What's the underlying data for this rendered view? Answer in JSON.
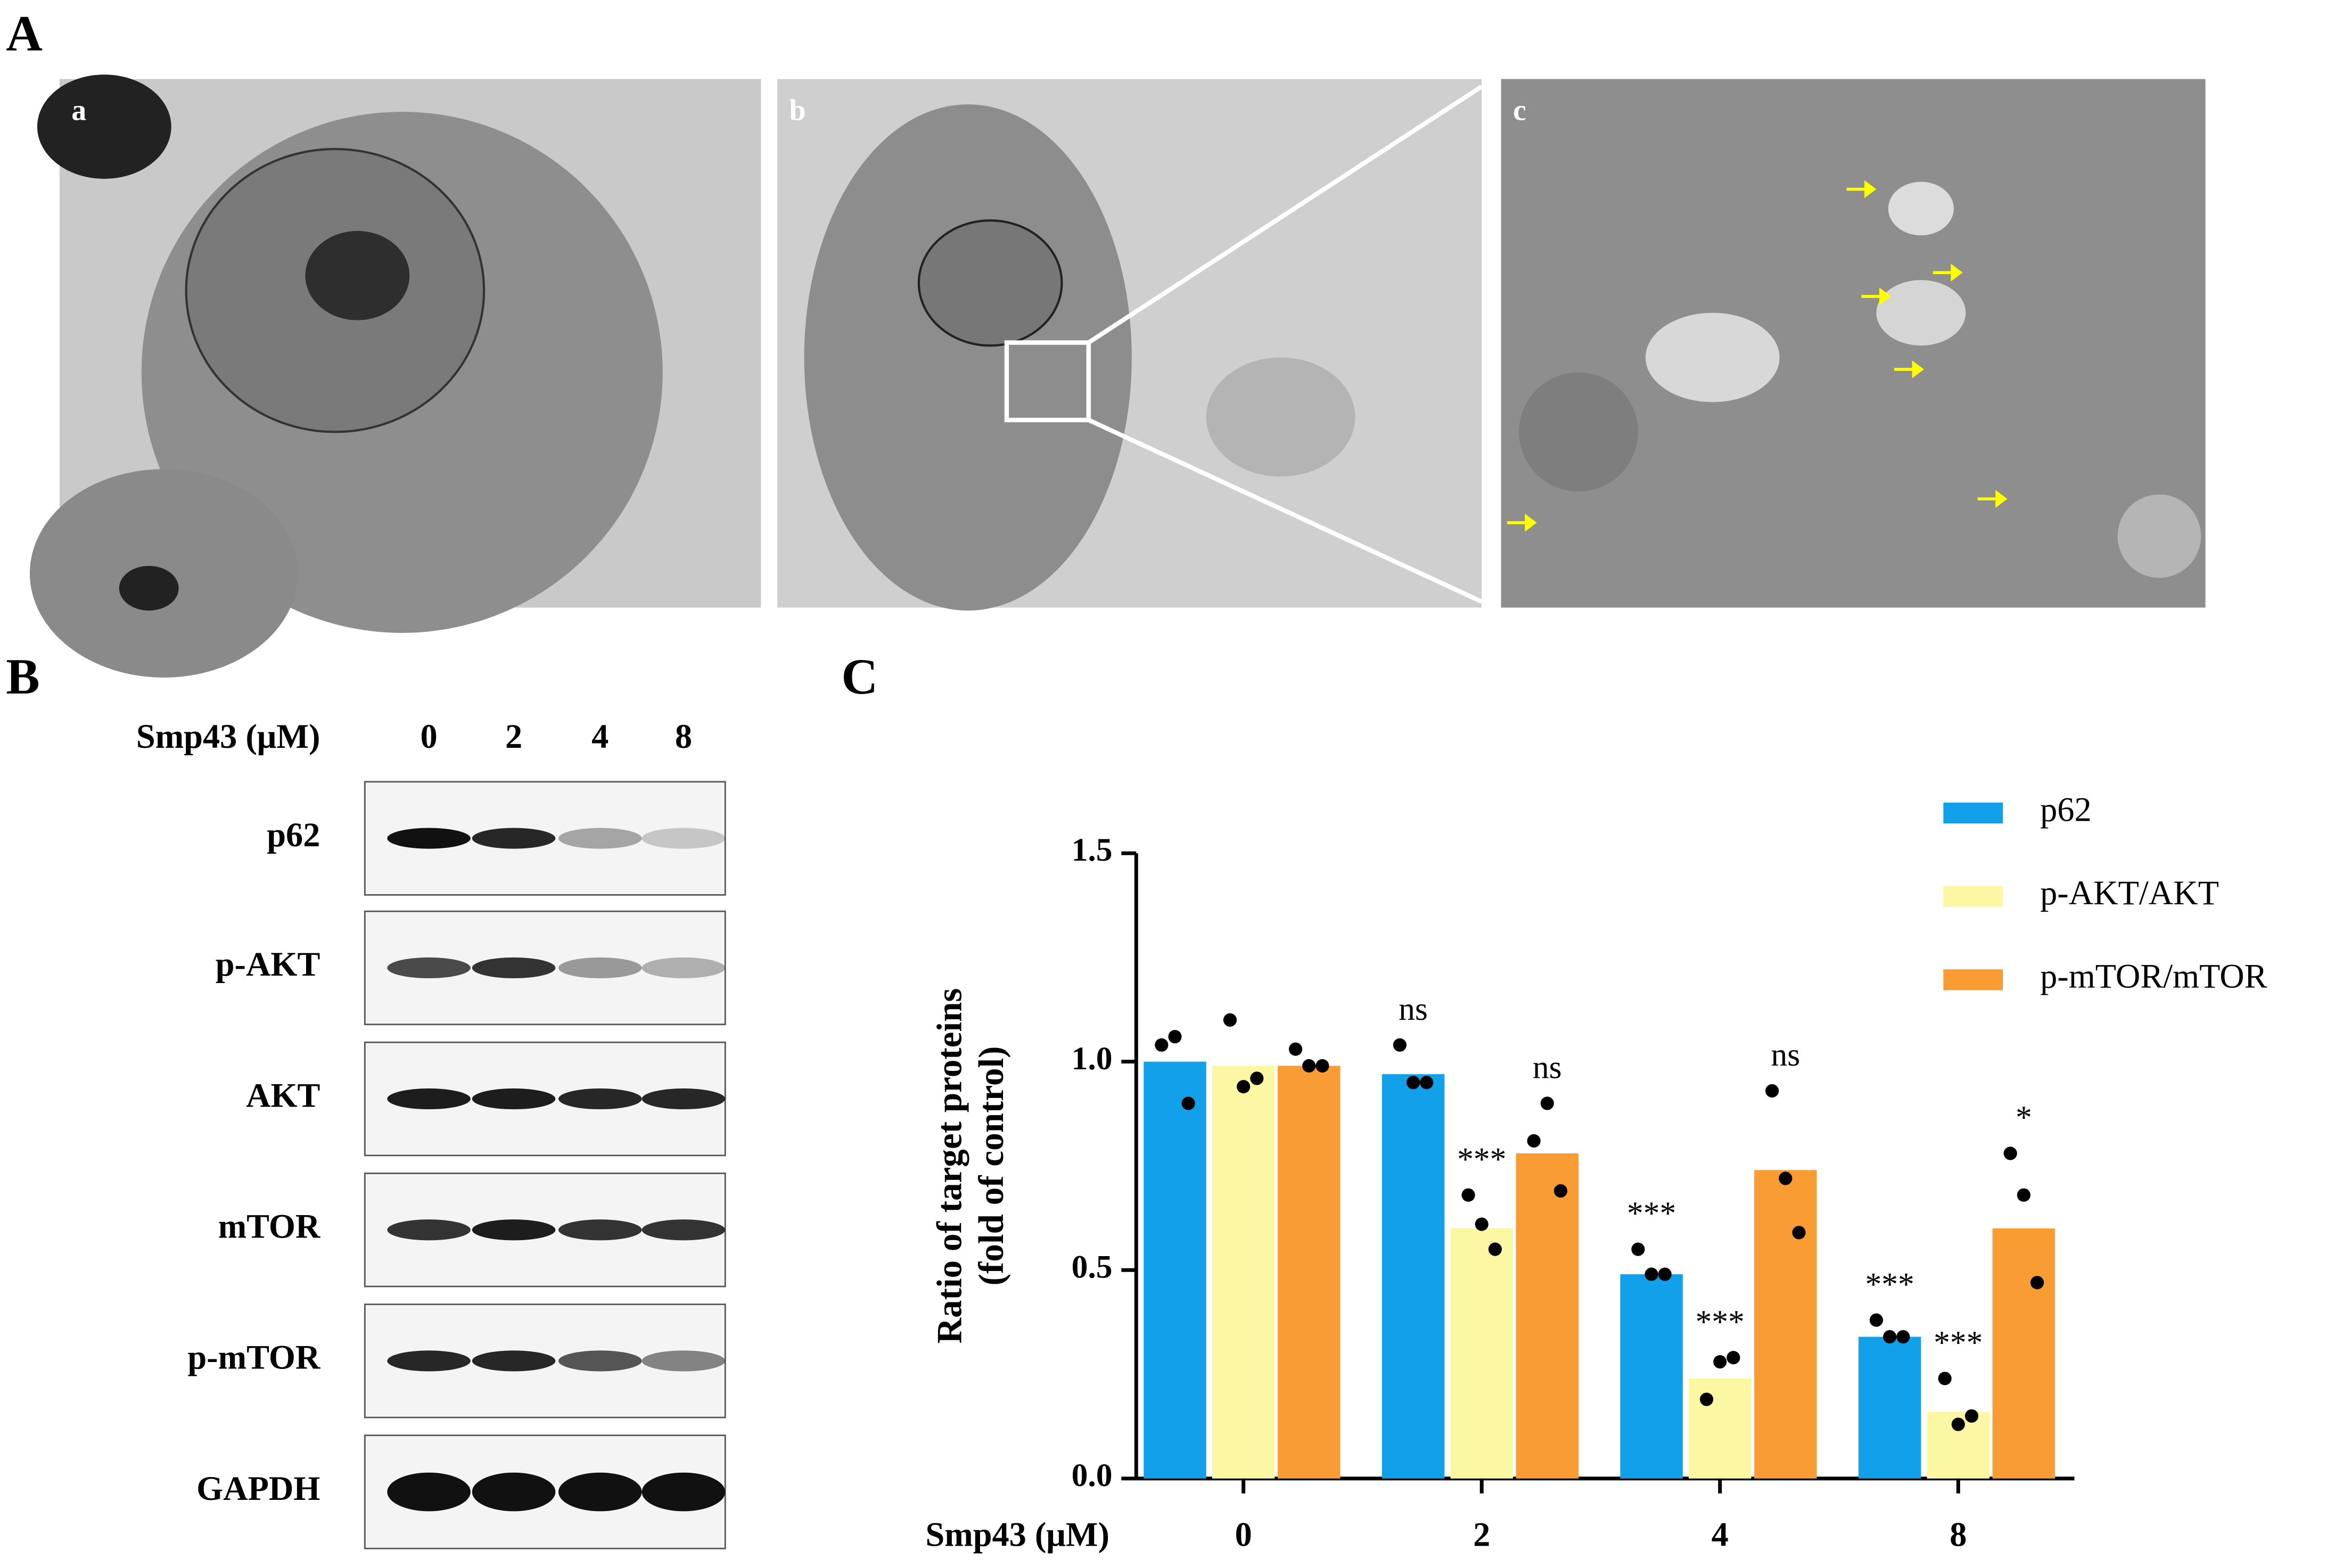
{
  "figure": {
    "panel_a": "A",
    "panel_b": "B",
    "panel_c": "C",
    "image_labels": [
      "a",
      "b",
      "c"
    ]
  },
  "blot": {
    "treatment_label": "Smp43 (μM)",
    "lanes": [
      "0",
      "2",
      "4",
      "8"
    ],
    "proteins": [
      "p62",
      "p-AKT",
      "AKT",
      "mTOR",
      "p-mTOR",
      "GAPDH"
    ]
  },
  "chart_data": {
    "type": "bar",
    "y_label": [
      "Ratio of target proteins",
      "(fold of control)"
    ],
    "x_label": "Smp43 (μM)",
    "categories": [
      "0",
      "2",
      "4",
      "8"
    ],
    "series": [
      {
        "name": "p62",
        "color": "#12a0ea",
        "values": [
          1.0,
          0.97,
          0.49,
          0.34
        ],
        "points": [
          [
            1.04,
            1.06,
            0.9
          ],
          [
            1.04,
            0.95,
            0.95
          ],
          [
            0.55,
            0.49,
            0.49
          ],
          [
            0.38,
            0.34,
            0.34
          ]
        ],
        "annotations": [
          null,
          "ns",
          "***",
          "***"
        ]
      },
      {
        "name": "p-AKT/AKT",
        "color": "#fbf7a2",
        "values": [
          0.99,
          0.6,
          0.24,
          0.16
        ],
        "points": [
          [
            1.1,
            0.94,
            0.96
          ],
          [
            0.68,
            0.61,
            0.55
          ],
          [
            0.19,
            0.28,
            0.29
          ],
          [
            0.24,
            0.13,
            0.15
          ]
        ],
        "annotations": [
          null,
          "***",
          "***",
          "***"
        ]
      },
      {
        "name": "p-mTOR/mTOR",
        "color": "#f99c34",
        "values": [
          0.99,
          0.78,
          0.74,
          0.6
        ],
        "points": [
          [
            1.03,
            0.99,
            0.99
          ],
          [
            0.81,
            0.9,
            0.69
          ],
          [
            0.93,
            0.72,
            0.59
          ],
          [
            0.78,
            0.68,
            0.47
          ]
        ],
        "annotations": [
          null,
          "ns",
          "ns",
          "*"
        ]
      }
    ],
    "ylim": [
      0,
      1.5
    ],
    "yticks": [
      {
        "value": 0,
        "label": "0.0"
      },
      {
        "value": 0.5,
        "label": "0.5"
      },
      {
        "value": 1,
        "label": "1.0"
      },
      {
        "value": 1.5,
        "label": "1.5"
      }
    ],
    "legend": "upper right"
  }
}
